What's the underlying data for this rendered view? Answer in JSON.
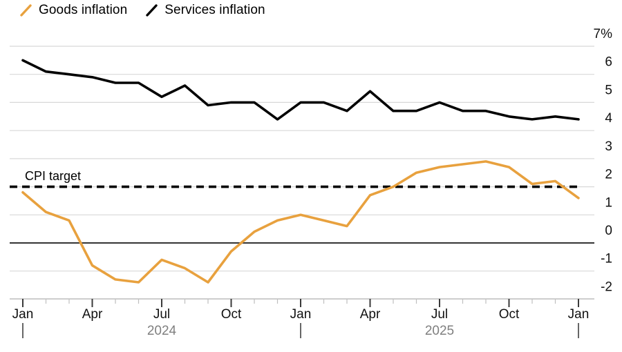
{
  "legend": [
    {
      "label": "Goods inflation",
      "color": "#E8A13E"
    },
    {
      "label": "Services inflation",
      "color": "#000000"
    }
  ],
  "annotation": {
    "cpi_target_label": "CPI target"
  },
  "colors": {
    "background": "#FFFFFF",
    "grid": "#D8D8D8",
    "zero_line": "#333333",
    "axis_line": "#C4C4C4",
    "tick_major": "#3A3A3A",
    "tick_minor": "#BFBFBF",
    "axis_text": "#111111",
    "year_text": "#7F7F7F",
    "target_line": "#000000"
  },
  "chart_data": {
    "type": "line",
    "unit": "%",
    "x": [
      "Jan 2024",
      "Feb 2024",
      "Mar 2024",
      "Apr 2024",
      "May 2024",
      "Jun 2024",
      "Jul 2024",
      "Aug 2024",
      "Sep 2024",
      "Oct 2024",
      "Nov 2024",
      "Dec 2024",
      "Jan 2025",
      "Feb 2025",
      "Mar 2025",
      "Apr 2025",
      "May 2025",
      "Jun 2025",
      "Jul 2025",
      "Aug 2025",
      "Sep 2025",
      "Oct 2025",
      "Nov 2025",
      "Dec 2025",
      "Jan 2026"
    ],
    "series": [
      {
        "name": "Goods inflation",
        "color": "#E8A13E",
        "values": [
          1.8,
          1.1,
          0.8,
          -0.8,
          -1.3,
          -1.4,
          -0.6,
          -0.9,
          -1.4,
          -0.3,
          0.4,
          0.8,
          1.0,
          0.8,
          0.6,
          1.7,
          2.0,
          2.5,
          2.7,
          2.8,
          2.9,
          2.7,
          2.1,
          2.2,
          1.6
        ]
      },
      {
        "name": "Services inflation",
        "color": "#000000",
        "values": [
          6.5,
          6.1,
          6.0,
          5.9,
          5.7,
          5.7,
          5.2,
          5.6,
          4.9,
          5.0,
          5.0,
          4.4,
          5.0,
          5.0,
          4.7,
          5.4,
          4.7,
          4.7,
          5.0,
          4.7,
          4.7,
          4.5,
          4.4,
          4.5,
          4.4
        ]
      }
    ],
    "reference_lines": [
      {
        "label": "CPI target",
        "value": 2,
        "style": "dashed",
        "color": "#000000"
      },
      {
        "label": "",
        "value": 0,
        "style": "solid",
        "color": "#333333"
      }
    ],
    "y_ticks": {
      "values": [
        7,
        6,
        5,
        4,
        3,
        2,
        1,
        0,
        -1,
        -2
      ],
      "labels": [
        "7%",
        "6",
        "5",
        "4",
        "3",
        "2",
        "1",
        "0",
        "-1",
        "-2"
      ]
    },
    "x_ticks": [
      {
        "index": 0,
        "label": "Jan"
      },
      {
        "index": 3,
        "label": "Apr"
      },
      {
        "index": 6,
        "label": "Jul"
      },
      {
        "index": 9,
        "label": "Oct"
      },
      {
        "index": 12,
        "label": "Jan"
      },
      {
        "index": 15,
        "label": "Apr"
      },
      {
        "index": 18,
        "label": "Jul"
      },
      {
        "index": 21,
        "label": "Oct"
      },
      {
        "index": 24,
        "label": "Jan"
      }
    ],
    "year_labels": [
      {
        "index": 6,
        "label": "2024"
      },
      {
        "index": 18,
        "label": "2025"
      }
    ],
    "year_markers": [
      0,
      12,
      24
    ],
    "ylim": [
      -2,
      7
    ],
    "grid": "horizontal",
    "legend_position": "top-left"
  }
}
